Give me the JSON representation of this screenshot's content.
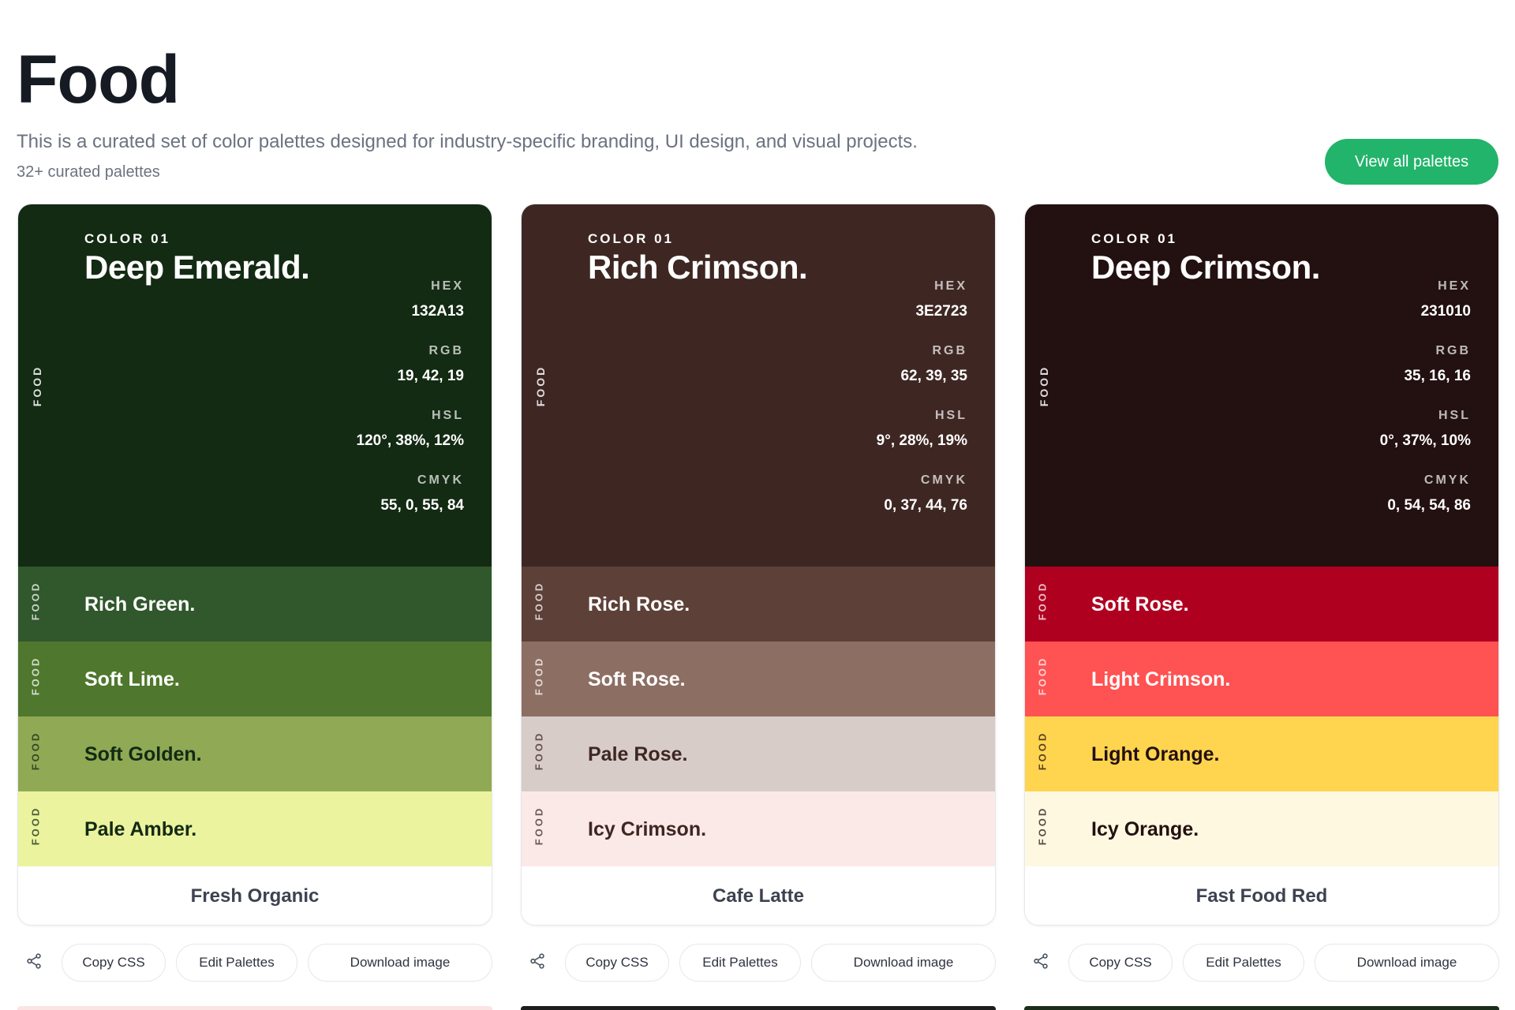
{
  "header": {
    "title": "Food",
    "description": "This is a curated set of color palettes designed for industry-specific branding, UI design, and visual projects.",
    "count": "32+ curated palettes",
    "view_all_label": "View all palettes"
  },
  "spec_labels": {
    "hex": "HEX",
    "rgb": "RGB",
    "hsl": "HSL",
    "cmyk": "CMYK"
  },
  "side_label": "FOOD",
  "actions": {
    "copy_css": "Copy CSS",
    "edit": "Edit Palettes",
    "download": "Download image",
    "share_icon": "share-icon"
  },
  "palettes": [
    {
      "name": "Fresh Organic",
      "primary": {
        "index": "COLOR 01",
        "name": "Deep Emerald.",
        "color": "#132A13",
        "hex": "132A13",
        "rgb": "19, 42, 19",
        "hsl": "120°, 38%, 12%",
        "cmyk": "55, 0, 55, 84"
      },
      "swatches": [
        {
          "name": "Rich Green.",
          "color": "#31572C",
          "text": "#ffffff"
        },
        {
          "name": "Soft Lime.",
          "color": "#4F772D",
          "text": "#ffffff"
        },
        {
          "name": "Soft Golden.",
          "color": "#90A955",
          "text": "#132A13"
        },
        {
          "name": "Pale Amber.",
          "color": "#ECF39E",
          "text": "#132A13"
        }
      ]
    },
    {
      "name": "Cafe Latte",
      "primary": {
        "index": "COLOR 01",
        "name": "Rich Crimson.",
        "color": "#3E2723",
        "hex": "3E2723",
        "rgb": "62, 39, 35",
        "hsl": "9°, 28%, 19%",
        "cmyk": "0, 37, 44, 76"
      },
      "swatches": [
        {
          "name": "Rich Rose.",
          "color": "#5D4037",
          "text": "#ffffff"
        },
        {
          "name": "Soft Rose.",
          "color": "#8D6E63",
          "text": "#ffffff"
        },
        {
          "name": "Pale Rose.",
          "color": "#D7CCC8",
          "text": "#3E2723"
        },
        {
          "name": "Icy Crimson.",
          "color": "#FBE9E7",
          "text": "#3E2723"
        }
      ]
    },
    {
      "name": "Fast Food Red",
      "primary": {
        "index": "COLOR 01",
        "name": "Deep Crimson.",
        "color": "#231010",
        "hex": "231010",
        "rgb": "35, 16, 16",
        "hsl": "0°, 37%, 10%",
        "cmyk": "0, 54, 54, 86"
      },
      "swatches": [
        {
          "name": "Soft Rose.",
          "color": "#B00020",
          "text": "#ffffff"
        },
        {
          "name": "Light Crimson.",
          "color": "#FF5252",
          "text": "#ffffff"
        },
        {
          "name": "Light Orange.",
          "color": "#FFD54F",
          "text": "#231010"
        },
        {
          "name": "Icy Orange.",
          "color": "#FFF8E1",
          "text": "#231010"
        }
      ]
    }
  ],
  "next_row_colors": [
    "#FBE4E4",
    "#1E1E1E",
    "#1B2E1B"
  ]
}
